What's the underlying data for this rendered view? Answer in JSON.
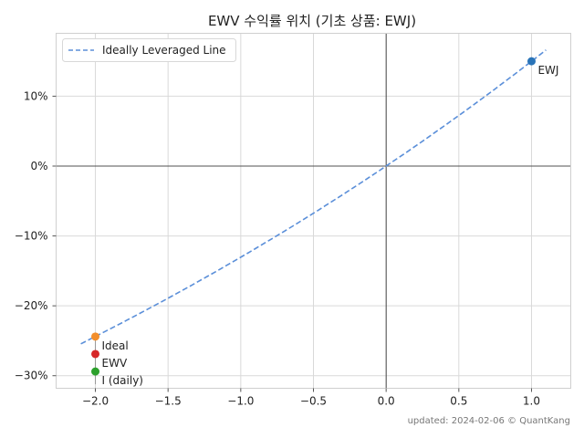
{
  "chart_data": {
    "type": "scatter",
    "title": "EWV 수익률 위치 (기초 상품: EWJ)",
    "xlabel": "",
    "ylabel": "",
    "xlim": [
      -2.27,
      1.27
    ],
    "ylim": [
      -0.318,
      0.19
    ],
    "x_ticks": [
      {
        "value": -2.0,
        "label": "−2.0"
      },
      {
        "value": -1.5,
        "label": "−1.5"
      },
      {
        "value": -1.0,
        "label": "−1.0"
      },
      {
        "value": -0.5,
        "label": "−0.5"
      },
      {
        "value": 0.0,
        "label": "0.0"
      },
      {
        "value": 0.5,
        "label": "0.5"
      },
      {
        "value": 1.0,
        "label": "1.0"
      }
    ],
    "y_ticks": [
      {
        "value": 0.1,
        "label": "10%"
      },
      {
        "value": 0.0,
        "label": "0%"
      },
      {
        "value": -0.1,
        "label": "−10%"
      },
      {
        "value": -0.2,
        "label": "−20%"
      },
      {
        "value": -0.3,
        "label": "−30%"
      }
    ],
    "grid": true,
    "legend": {
      "position": "top-left",
      "entries": [
        "Ideally Leveraged Line"
      ]
    },
    "line": {
      "name": "Ideally Leveraged Line",
      "style": "dashed",
      "color": "#5b8fd9",
      "base_return": 0.15,
      "x_range": [
        -2.1,
        1.1
      ]
    },
    "points": [
      {
        "x": 1.0,
        "y": 0.15,
        "label": "EWJ",
        "color": "#2a74b8"
      },
      {
        "x": -2.0,
        "y": -0.244,
        "label": "Ideal",
        "color": "#f28e2b"
      },
      {
        "x": -2.0,
        "y": -0.269,
        "label": "EWV",
        "color": "#d62728"
      },
      {
        "x": -2.0,
        "y": -0.294,
        "label": "I (daily)",
        "color": "#2ca02c"
      }
    ],
    "footer": "updated: 2024-02-06 © QuantKang"
  }
}
